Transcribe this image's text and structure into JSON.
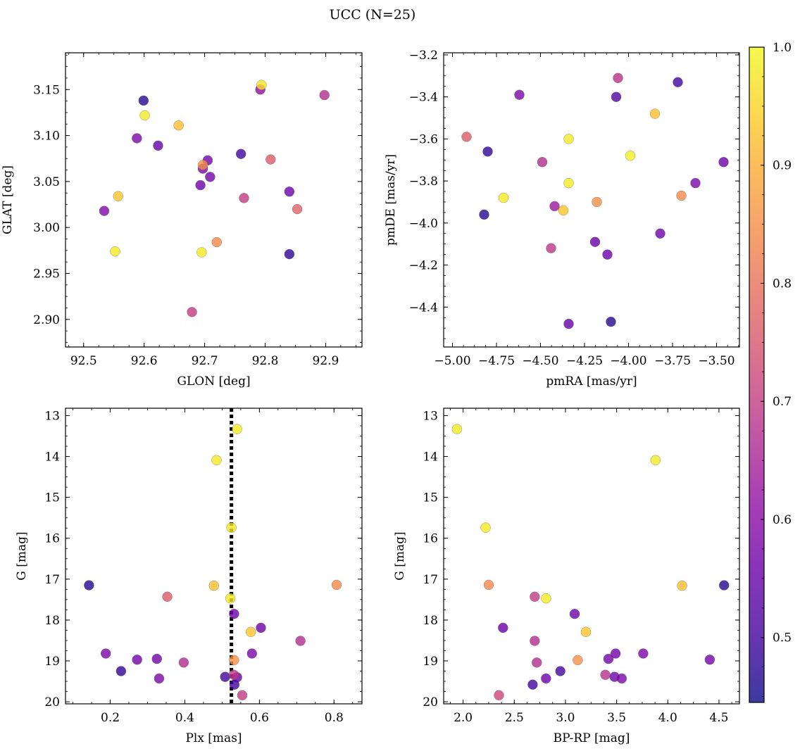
{
  "figure": {
    "title": "UCC (N=25)"
  },
  "colors": {
    "colormap": "plasma",
    "marker_alpha": 0.8,
    "marker_edge": "#555555",
    "reference_line": "#000000"
  },
  "chart_data": [
    {
      "type": "scatter",
      "xlabel": "GLON [deg]",
      "ylabel": "GLAT [deg]",
      "xlim": [
        92.47,
        92.96
      ],
      "ylim": [
        2.87,
        3.19
      ],
      "xticks": [
        92.5,
        92.6,
        92.7,
        92.8,
        92.9
      ],
      "xtick_labels": [
        "92.5",
        "92.6",
        "92.7",
        "92.8",
        "92.9"
      ],
      "yticks": [
        2.9,
        2.95,
        3.0,
        3.05,
        3.1,
        3.15
      ],
      "ytick_labels": [
        "2.90",
        "2.95",
        "3.00",
        "3.05",
        "3.10",
        "3.15"
      ],
      "x": [
        92.599,
        92.588,
        92.623,
        92.601,
        92.657,
        92.705,
        92.697,
        92.709,
        92.693,
        92.697,
        92.76,
        92.792,
        92.794,
        92.809,
        92.898,
        92.84,
        92.853,
        92.765,
        92.534,
        92.557,
        92.552,
        92.695,
        92.72,
        92.84,
        92.679
      ],
      "y": [
        3.138,
        3.097,
        3.089,
        3.122,
        3.111,
        3.073,
        3.064,
        3.055,
        3.046,
        3.068,
        3.08,
        3.15,
        3.155,
        3.074,
        3.144,
        3.039,
        3.02,
        3.032,
        3.018,
        3.034,
        2.974,
        2.973,
        2.984,
        2.971,
        2.908
      ],
      "color_values": [
        0.47,
        0.58,
        0.55,
        0.98,
        0.92,
        0.57,
        0.58,
        0.57,
        0.56,
        0.85,
        0.5,
        0.61,
        0.97,
        0.76,
        0.67,
        0.56,
        0.77,
        0.7,
        0.59,
        0.93,
        0.98,
        0.98,
        0.84,
        0.48,
        0.7
      ]
    },
    {
      "type": "scatter",
      "xlabel": "pmRA [mas/yr]",
      "ylabel": "pmDE [mas/yr]",
      "xlim": [
        -5.05,
        -3.37
      ],
      "ylim": [
        -4.59,
        -3.19
      ],
      "xticks": [
        -5.0,
        -4.75,
        -4.5,
        -4.25,
        -4.0,
        -3.75,
        -3.5
      ],
      "xtick_labels": [
        "−5.00",
        "−4.75",
        "−4.50",
        "−4.25",
        "−4.00",
        "−3.75",
        "−3.50"
      ],
      "yticks": [
        -4.4,
        -4.2,
        -4.0,
        -3.8,
        -3.6,
        -3.4,
        -3.2
      ],
      "ytick_labels": [
        "−4.4",
        "−4.2",
        "−4.0",
        "−3.8",
        "−3.6",
        "−3.4",
        "−3.2"
      ],
      "x": [
        -4.06,
        -3.72,
        -4.62,
        -4.07,
        -3.85,
        -4.92,
        -4.8,
        -4.34,
        -3.99,
        -4.49,
        -4.71,
        -4.34,
        -3.62,
        -3.46,
        -3.7,
        -4.18,
        -4.42,
        -4.37,
        -4.82,
        -3.82,
        -4.19,
        -4.44,
        -4.12,
        -4.34,
        -4.1
      ],
      "y": [
        -3.31,
        -3.33,
        -3.39,
        -3.4,
        -3.48,
        -3.59,
        -3.66,
        -3.6,
        -3.68,
        -3.71,
        -3.88,
        -3.81,
        -3.81,
        -3.71,
        -3.87,
        -3.9,
        -3.92,
        -3.94,
        -3.96,
        -4.05,
        -4.09,
        -4.12,
        -4.15,
        -4.48,
        -4.47
      ],
      "color_values": [
        0.68,
        0.5,
        0.58,
        0.52,
        0.92,
        0.76,
        0.48,
        0.98,
        0.99,
        0.67,
        0.98,
        0.98,
        0.58,
        0.56,
        0.84,
        0.85,
        0.63,
        0.93,
        0.47,
        0.56,
        0.55,
        0.69,
        0.56,
        0.55,
        0.47
      ]
    },
    {
      "type": "scatter",
      "xlabel": "Plx [mas]",
      "ylabel": "G [mag]",
      "xlim": [
        0.08,
        0.875
      ],
      "ylim": [
        20.05,
        12.82
      ],
      "inverted_y": true,
      "reference_line": {
        "orientation": "vertical",
        "style": "dotted",
        "x": 0.525
      },
      "xticks": [
        0.2,
        0.4,
        0.6,
        0.8
      ],
      "xtick_labels": [
        "0.2",
        "0.4",
        "0.6",
        "0.8"
      ],
      "yticks": [
        13,
        14,
        15,
        16,
        17,
        18,
        19,
        20
      ],
      "ytick_labels": [
        "13",
        "14",
        "15",
        "16",
        "17",
        "18",
        "19",
        "20"
      ],
      "x": [
        0.54,
        0.485,
        0.525,
        0.143,
        0.478,
        0.807,
        0.353,
        0.522,
        0.532,
        0.604,
        0.577,
        0.71,
        0.188,
        0.58,
        0.325,
        0.272,
        0.397,
        0.532,
        0.229,
        0.331,
        0.508,
        0.54,
        0.533,
        0.554,
        0.531
      ],
      "y": [
        13.33,
        14.09,
        15.74,
        17.15,
        17.16,
        17.14,
        17.43,
        17.47,
        17.85,
        18.19,
        18.29,
        18.51,
        18.82,
        18.82,
        18.95,
        18.97,
        19.04,
        18.98,
        19.25,
        19.43,
        19.39,
        19.4,
        19.58,
        19.84,
        19.34
      ],
      "color_values": [
        0.98,
        0.98,
        0.98,
        0.47,
        0.92,
        0.84,
        0.76,
        0.98,
        0.56,
        0.56,
        0.93,
        0.67,
        0.58,
        0.58,
        0.57,
        0.57,
        0.67,
        0.85,
        0.48,
        0.58,
        0.5,
        0.55,
        0.5,
        0.7,
        0.69
      ]
    },
    {
      "type": "scatter",
      "xlabel": "BP-RP [mag]",
      "ylabel": "G [mag]",
      "xlim": [
        1.81,
        4.7
      ],
      "ylim": [
        20.05,
        12.82
      ],
      "inverted_y": true,
      "xticks": [
        2.0,
        2.5,
        3.0,
        3.5,
        4.0,
        4.5
      ],
      "xtick_labels": [
        "2.0",
        "2.5",
        "3.0",
        "3.5",
        "4.0",
        "4.5"
      ],
      "yticks": [
        13,
        14,
        15,
        16,
        17,
        18,
        19,
        20
      ],
      "ytick_labels": [
        "13",
        "14",
        "15",
        "16",
        "17",
        "18",
        "19",
        "20"
      ],
      "x": [
        1.94,
        3.88,
        2.22,
        2.25,
        4.14,
        4.55,
        2.7,
        2.81,
        3.09,
        2.39,
        3.2,
        2.7,
        3.76,
        3.49,
        3.42,
        2.72,
        3.12,
        4.41,
        2.95,
        2.81,
        3.39,
        3.48,
        3.55,
        2.68,
        2.35
      ],
      "y": [
        13.33,
        14.09,
        15.74,
        17.14,
        17.16,
        17.15,
        17.43,
        17.47,
        17.85,
        18.19,
        18.29,
        18.51,
        18.82,
        18.82,
        18.95,
        19.04,
        18.98,
        18.97,
        19.25,
        19.43,
        19.34,
        19.39,
        19.43,
        19.58,
        19.84
      ],
      "color_values": [
        0.98,
        0.98,
        0.98,
        0.84,
        0.92,
        0.47,
        0.7,
        0.98,
        0.56,
        0.55,
        0.93,
        0.67,
        0.58,
        0.57,
        0.57,
        0.67,
        0.85,
        0.57,
        0.5,
        0.56,
        0.68,
        0.56,
        0.58,
        0.5,
        0.72
      ]
    }
  ],
  "colorbar": {
    "min": 0.445,
    "max": 1.0,
    "ticks": [
      0.5,
      0.6,
      0.7,
      0.8,
      0.9,
      1.0
    ],
    "tick_labels": [
      "0.5",
      "0.6",
      "0.7",
      "0.8",
      "0.9",
      "1.0"
    ]
  }
}
